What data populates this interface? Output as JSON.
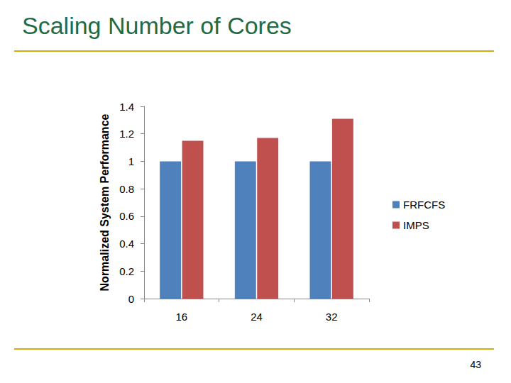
{
  "chart_data": {
    "type": "bar",
    "title": "Scaling Number of Cores",
    "y_label": "Normalized System Performance",
    "categories": [
      "16",
      "24",
      "32"
    ],
    "series": [
      {
        "name": "FRFCFS",
        "color": "#4f81bd",
        "values": [
          1,
          1,
          1
        ]
      },
      {
        "name": "IMPS",
        "color": "#c0504d",
        "values": [
          1.15,
          1.17,
          1.31
        ]
      }
    ],
    "ylim": [
      0,
      1.4
    ],
    "yticks": [
      0,
      0.2,
      0.4,
      0.6,
      0.8,
      1,
      1.2,
      1.4
    ],
    "grid": false,
    "legend": "right",
    "annotations": [
      "43"
    ]
  }
}
